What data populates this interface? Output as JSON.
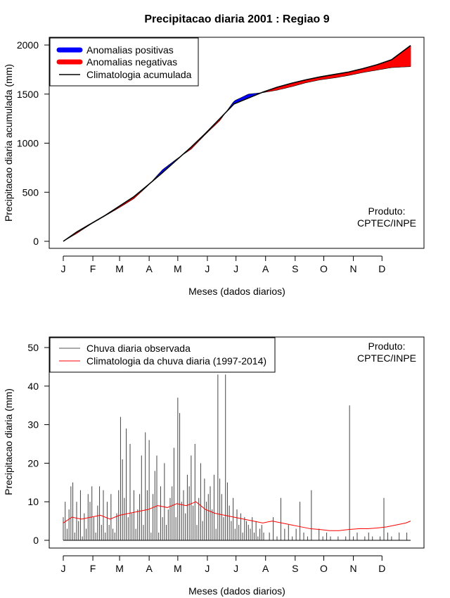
{
  "title": "Precipitacao diaria 2001 : Regiao 9",
  "chart_data": [
    {
      "type": "area",
      "title": "Precipitacao diaria 2001 : Regiao 9",
      "xlabel": "Meses (dados diarios)",
      "ylabel": "Precipitacao diaria acumulada (mm)",
      "xlim": [
        1,
        365
      ],
      "ylim": [
        0,
        2000
      ],
      "yticks": [
        "0",
        "500",
        "1000",
        "1500",
        "2000"
      ],
      "months": [
        "J",
        "F",
        "M",
        "A",
        "M",
        "J",
        "J",
        "A",
        "S",
        "O",
        "N",
        "D"
      ],
      "month_start_days": [
        1,
        32,
        60,
        91,
        121,
        152,
        182,
        213,
        244,
        274,
        305,
        335
      ],
      "legend": [
        {
          "label": "Anomalias positivas",
          "color": "#0000ff"
        },
        {
          "label": "Anomalias negativas",
          "color": "#ff0000"
        },
        {
          "label": "Climatologia acumulada",
          "color": "#000000"
        }
      ],
      "annotation": [
        "Produto:",
        "CPTEC/INPE"
      ],
      "series": [
        {
          "name": "Climatologia acumulada",
          "x": [
            1,
            15,
            30,
            45,
            60,
            75,
            90,
            105,
            120,
            135,
            150,
            165,
            180,
            195,
            210,
            225,
            240,
            255,
            270,
            285,
            300,
            315,
            330,
            345,
            365
          ],
          "values": [
            0,
            95,
            180,
            265,
            360,
            455,
            575,
            700,
            830,
            960,
            1100,
            1250,
            1400,
            1460,
            1520,
            1570,
            1610,
            1645,
            1675,
            1700,
            1725,
            1760,
            1800,
            1850,
            1995
          ]
        },
        {
          "name": "Precipitacao acumulada observada",
          "x": [
            1,
            15,
            30,
            45,
            60,
            75,
            90,
            105,
            120,
            135,
            150,
            165,
            180,
            195,
            210,
            225,
            240,
            255,
            270,
            285,
            300,
            315,
            330,
            345,
            365
          ],
          "values": [
            0,
            80,
            175,
            260,
            345,
            435,
            570,
            730,
            840,
            940,
            1090,
            1230,
            1430,
            1500,
            1515,
            1540,
            1575,
            1615,
            1645,
            1665,
            1690,
            1720,
            1745,
            1770,
            1780
          ]
        }
      ]
    },
    {
      "type": "bar",
      "xlabel": "Meses (dados diarios)",
      "ylabel": "Precipitacao diaria (mm)",
      "xlim": [
        1,
        365
      ],
      "ylim": [
        0,
        50
      ],
      "yticks": [
        "0",
        "10",
        "20",
        "30",
        "40",
        "50"
      ],
      "months": [
        "J",
        "F",
        "M",
        "A",
        "M",
        "J",
        "J",
        "A",
        "S",
        "O",
        "N",
        "D"
      ],
      "month_start_days": [
        1,
        32,
        60,
        91,
        121,
        152,
        182,
        213,
        244,
        274,
        305,
        335
      ],
      "legend": [
        {
          "label": "Chuva diaria observada",
          "color": "#555555"
        },
        {
          "label": "Climatologia da chuva diaria (1997-2014)",
          "color": "#ff0000"
        }
      ],
      "annotation": [
        "Produto:",
        "CPTEC/INPE"
      ],
      "series": [
        {
          "name": "Chuva diaria observada",
          "days": [
            1,
            3,
            5,
            7,
            9,
            11,
            13,
            15,
            17,
            19,
            21,
            23,
            25,
            27,
            29,
            31,
            33,
            35,
            37,
            39,
            41,
            43,
            45,
            47,
            49,
            51,
            53,
            55,
            57,
            59,
            61,
            63,
            65,
            67,
            69,
            71,
            73,
            75,
            77,
            79,
            81,
            83,
            85,
            87,
            89,
            91,
            93,
            95,
            97,
            99,
            101,
            103,
            105,
            107,
            109,
            111,
            113,
            115,
            117,
            119,
            121,
            123,
            125,
            127,
            129,
            131,
            133,
            135,
            137,
            139,
            141,
            143,
            145,
            147,
            149,
            151,
            153,
            155,
            157,
            159,
            161,
            163,
            165,
            167,
            169,
            171,
            173,
            175,
            177,
            179,
            181,
            183,
            185,
            187,
            189,
            191,
            193,
            195,
            197,
            199,
            201,
            203,
            205,
            207,
            209,
            211,
            213,
            217,
            221,
            225,
            229,
            233,
            237,
            241,
            245,
            249,
            253,
            257,
            261,
            265,
            269,
            273,
            277,
            281,
            285,
            289,
            293,
            297,
            301,
            305,
            309,
            313,
            317,
            321,
            325,
            329,
            333,
            337,
            341,
            345,
            349,
            353,
            357,
            361
          ],
          "values": [
            6,
            10,
            3,
            8,
            14,
            15,
            2,
            10,
            5,
            13,
            1,
            7,
            3,
            12,
            10,
            14,
            6,
            2,
            9,
            14,
            4,
            13,
            2,
            10,
            4,
            12,
            3,
            2,
            7,
            13,
            32,
            21,
            11,
            29,
            6,
            25,
            7,
            13,
            3,
            8,
            12,
            22,
            4,
            28,
            13,
            26,
            2,
            12,
            18,
            22,
            2,
            14,
            6,
            20,
            4,
            8,
            11,
            14,
            24,
            6,
            37,
            33,
            10,
            13,
            7,
            17,
            14,
            22,
            9,
            25,
            4,
            11,
            20,
            5,
            16,
            10,
            12,
            14,
            8,
            17,
            3,
            43,
            16,
            12,
            6,
            43,
            15,
            9,
            5,
            11,
            3,
            8,
            4,
            7,
            2,
            6,
            5,
            4,
            3,
            6,
            2,
            5,
            1,
            3,
            4,
            2,
            0,
            2,
            6,
            1,
            11,
            3,
            4,
            1,
            3,
            10,
            2,
            1,
            13,
            0,
            3,
            1,
            2,
            1,
            0,
            1,
            0,
            1,
            35,
            1,
            2,
            0,
            1,
            2,
            1,
            0,
            1,
            11,
            2,
            1,
            0,
            2,
            0,
            2
          ]
        },
        {
          "name": "Climatologia da chuva diaria (1997-2014)",
          "x": [
            1,
            10,
            20,
            30,
            40,
            50,
            60,
            70,
            80,
            90,
            100,
            110,
            120,
            130,
            140,
            150,
            160,
            170,
            180,
            190,
            200,
            210,
            220,
            230,
            240,
            250,
            260,
            270,
            280,
            290,
            300,
            310,
            320,
            330,
            340,
            350,
            360,
            365
          ],
          "values": [
            4.5,
            6,
            5.5,
            6,
            6.5,
            5.5,
            6.5,
            7,
            7.5,
            8,
            9,
            8.5,
            9.5,
            9,
            10,
            8,
            7,
            6.5,
            6,
            5.5,
            5,
            4.5,
            5,
            4.5,
            4,
            3.5,
            3,
            2.8,
            2.5,
            2.5,
            2.8,
            3,
            3,
            3.2,
            3.5,
            4,
            4.5,
            5
          ]
        }
      ]
    }
  ]
}
